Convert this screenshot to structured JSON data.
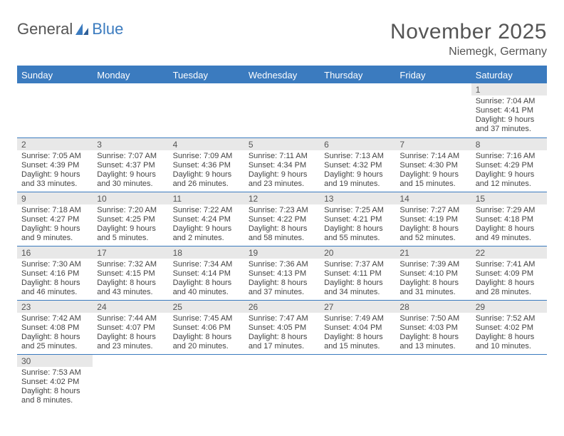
{
  "logo": {
    "text1": "General",
    "text2": "Blue"
  },
  "title": "November 2025",
  "subtitle": "Niemegk, Germany",
  "colors": {
    "header_bg": "#3b7bbf",
    "header_text": "#ffffff",
    "daybar_bg": "#e8e8e8",
    "text": "#555555",
    "line": "#3b7bbf"
  },
  "weekdays": [
    "Sunday",
    "Monday",
    "Tuesday",
    "Wednesday",
    "Thursday",
    "Friday",
    "Saturday"
  ],
  "weeks": [
    [
      {
        "n": "",
        "sunrise": "",
        "sunset": "",
        "daylight": ""
      },
      {
        "n": "",
        "sunrise": "",
        "sunset": "",
        "daylight": ""
      },
      {
        "n": "",
        "sunrise": "",
        "sunset": "",
        "daylight": ""
      },
      {
        "n": "",
        "sunrise": "",
        "sunset": "",
        "daylight": ""
      },
      {
        "n": "",
        "sunrise": "",
        "sunset": "",
        "daylight": ""
      },
      {
        "n": "",
        "sunrise": "",
        "sunset": "",
        "daylight": ""
      },
      {
        "n": "1",
        "sunrise": "Sunrise: 7:04 AM",
        "sunset": "Sunset: 4:41 PM",
        "daylight": "Daylight: 9 hours and 37 minutes."
      }
    ],
    [
      {
        "n": "2",
        "sunrise": "Sunrise: 7:05 AM",
        "sunset": "Sunset: 4:39 PM",
        "daylight": "Daylight: 9 hours and 33 minutes."
      },
      {
        "n": "3",
        "sunrise": "Sunrise: 7:07 AM",
        "sunset": "Sunset: 4:37 PM",
        "daylight": "Daylight: 9 hours and 30 minutes."
      },
      {
        "n": "4",
        "sunrise": "Sunrise: 7:09 AM",
        "sunset": "Sunset: 4:36 PM",
        "daylight": "Daylight: 9 hours and 26 minutes."
      },
      {
        "n": "5",
        "sunrise": "Sunrise: 7:11 AM",
        "sunset": "Sunset: 4:34 PM",
        "daylight": "Daylight: 9 hours and 23 minutes."
      },
      {
        "n": "6",
        "sunrise": "Sunrise: 7:13 AM",
        "sunset": "Sunset: 4:32 PM",
        "daylight": "Daylight: 9 hours and 19 minutes."
      },
      {
        "n": "7",
        "sunrise": "Sunrise: 7:14 AM",
        "sunset": "Sunset: 4:30 PM",
        "daylight": "Daylight: 9 hours and 15 minutes."
      },
      {
        "n": "8",
        "sunrise": "Sunrise: 7:16 AM",
        "sunset": "Sunset: 4:29 PM",
        "daylight": "Daylight: 9 hours and 12 minutes."
      }
    ],
    [
      {
        "n": "9",
        "sunrise": "Sunrise: 7:18 AM",
        "sunset": "Sunset: 4:27 PM",
        "daylight": "Daylight: 9 hours and 9 minutes."
      },
      {
        "n": "10",
        "sunrise": "Sunrise: 7:20 AM",
        "sunset": "Sunset: 4:25 PM",
        "daylight": "Daylight: 9 hours and 5 minutes."
      },
      {
        "n": "11",
        "sunrise": "Sunrise: 7:22 AM",
        "sunset": "Sunset: 4:24 PM",
        "daylight": "Daylight: 9 hours and 2 minutes."
      },
      {
        "n": "12",
        "sunrise": "Sunrise: 7:23 AM",
        "sunset": "Sunset: 4:22 PM",
        "daylight": "Daylight: 8 hours and 58 minutes."
      },
      {
        "n": "13",
        "sunrise": "Sunrise: 7:25 AM",
        "sunset": "Sunset: 4:21 PM",
        "daylight": "Daylight: 8 hours and 55 minutes."
      },
      {
        "n": "14",
        "sunrise": "Sunrise: 7:27 AM",
        "sunset": "Sunset: 4:19 PM",
        "daylight": "Daylight: 8 hours and 52 minutes."
      },
      {
        "n": "15",
        "sunrise": "Sunrise: 7:29 AM",
        "sunset": "Sunset: 4:18 PM",
        "daylight": "Daylight: 8 hours and 49 minutes."
      }
    ],
    [
      {
        "n": "16",
        "sunrise": "Sunrise: 7:30 AM",
        "sunset": "Sunset: 4:16 PM",
        "daylight": "Daylight: 8 hours and 46 minutes."
      },
      {
        "n": "17",
        "sunrise": "Sunrise: 7:32 AM",
        "sunset": "Sunset: 4:15 PM",
        "daylight": "Daylight: 8 hours and 43 minutes."
      },
      {
        "n": "18",
        "sunrise": "Sunrise: 7:34 AM",
        "sunset": "Sunset: 4:14 PM",
        "daylight": "Daylight: 8 hours and 40 minutes."
      },
      {
        "n": "19",
        "sunrise": "Sunrise: 7:36 AM",
        "sunset": "Sunset: 4:13 PM",
        "daylight": "Daylight: 8 hours and 37 minutes."
      },
      {
        "n": "20",
        "sunrise": "Sunrise: 7:37 AM",
        "sunset": "Sunset: 4:11 PM",
        "daylight": "Daylight: 8 hours and 34 minutes."
      },
      {
        "n": "21",
        "sunrise": "Sunrise: 7:39 AM",
        "sunset": "Sunset: 4:10 PM",
        "daylight": "Daylight: 8 hours and 31 minutes."
      },
      {
        "n": "22",
        "sunrise": "Sunrise: 7:41 AM",
        "sunset": "Sunset: 4:09 PM",
        "daylight": "Daylight: 8 hours and 28 minutes."
      }
    ],
    [
      {
        "n": "23",
        "sunrise": "Sunrise: 7:42 AM",
        "sunset": "Sunset: 4:08 PM",
        "daylight": "Daylight: 8 hours and 25 minutes."
      },
      {
        "n": "24",
        "sunrise": "Sunrise: 7:44 AM",
        "sunset": "Sunset: 4:07 PM",
        "daylight": "Daylight: 8 hours and 23 minutes."
      },
      {
        "n": "25",
        "sunrise": "Sunrise: 7:45 AM",
        "sunset": "Sunset: 4:06 PM",
        "daylight": "Daylight: 8 hours and 20 minutes."
      },
      {
        "n": "26",
        "sunrise": "Sunrise: 7:47 AM",
        "sunset": "Sunset: 4:05 PM",
        "daylight": "Daylight: 8 hours and 17 minutes."
      },
      {
        "n": "27",
        "sunrise": "Sunrise: 7:49 AM",
        "sunset": "Sunset: 4:04 PM",
        "daylight": "Daylight: 8 hours and 15 minutes."
      },
      {
        "n": "28",
        "sunrise": "Sunrise: 7:50 AM",
        "sunset": "Sunset: 4:03 PM",
        "daylight": "Daylight: 8 hours and 13 minutes."
      },
      {
        "n": "29",
        "sunrise": "Sunrise: 7:52 AM",
        "sunset": "Sunset: 4:02 PM",
        "daylight": "Daylight: 8 hours and 10 minutes."
      }
    ],
    [
      {
        "n": "30",
        "sunrise": "Sunrise: 7:53 AM",
        "sunset": "Sunset: 4:02 PM",
        "daylight": "Daylight: 8 hours and 8 minutes."
      },
      {
        "n": "",
        "sunrise": "",
        "sunset": "",
        "daylight": ""
      },
      {
        "n": "",
        "sunrise": "",
        "sunset": "",
        "daylight": ""
      },
      {
        "n": "",
        "sunrise": "",
        "sunset": "",
        "daylight": ""
      },
      {
        "n": "",
        "sunrise": "",
        "sunset": "",
        "daylight": ""
      },
      {
        "n": "",
        "sunrise": "",
        "sunset": "",
        "daylight": ""
      },
      {
        "n": "",
        "sunrise": "",
        "sunset": "",
        "daylight": ""
      }
    ]
  ]
}
